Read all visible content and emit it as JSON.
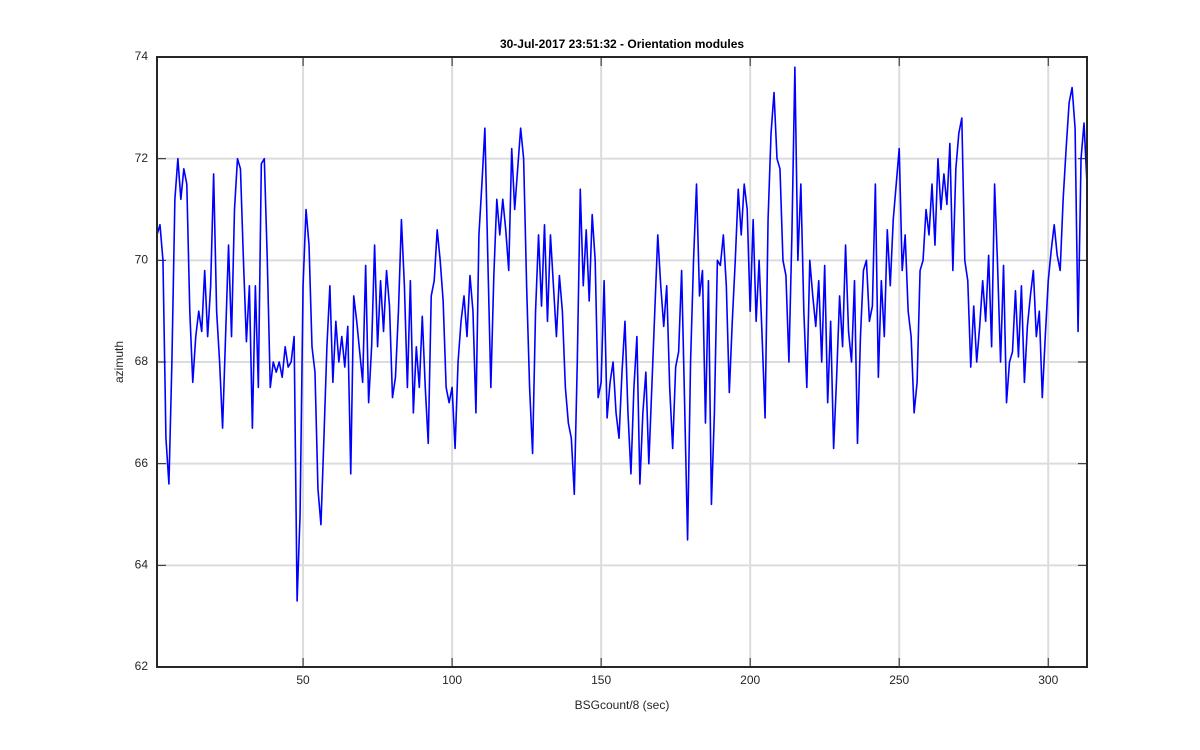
{
  "chart_data": {
    "type": "line",
    "title": "30-Jul-2017 23:51:32 - Orientation modules",
    "xlabel": "BSGcount/8 (sec)",
    "ylabel": "azimuth",
    "xlim": [
      1,
      313
    ],
    "xticks": [
      50,
      100,
      150,
      200,
      250,
      300
    ],
    "ylim": [
      62,
      74
    ],
    "yticks": [
      62,
      64,
      66,
      68,
      70,
      72,
      74
    ],
    "grid": true,
    "series": [
      {
        "color": "#0000ff",
        "x": [
          1,
          2,
          3,
          4,
          5,
          6,
          7,
          8,
          9,
          10,
          11,
          12,
          13,
          14,
          15,
          16,
          17,
          18,
          19,
          20,
          21,
          22,
          23,
          24,
          25,
          26,
          27,
          28,
          29,
          30,
          31,
          32,
          33,
          34,
          35,
          36,
          37,
          38,
          39,
          40,
          41,
          42,
          43,
          44,
          45,
          46,
          47,
          48,
          49,
          50,
          51,
          52,
          53,
          54,
          55,
          56,
          57,
          58,
          59,
          60,
          61,
          62,
          63,
          64,
          65,
          66,
          67,
          68,
          69,
          70,
          71,
          72,
          73,
          74,
          75,
          76,
          77,
          78,
          79,
          80,
          81,
          82,
          83,
          84,
          85,
          86,
          87,
          88,
          89,
          90,
          91,
          92,
          93,
          94,
          95,
          96,
          97,
          98,
          99,
          100,
          101,
          102,
          103,
          104,
          105,
          106,
          107,
          108,
          109,
          110,
          111,
          112,
          113,
          114,
          115,
          116,
          117,
          118,
          119,
          120,
          121,
          122,
          123,
          124,
          125,
          126,
          127,
          128,
          129,
          130,
          131,
          132,
          133,
          134,
          135,
          136,
          137,
          138,
          139,
          140,
          141,
          142,
          143,
          144,
          145,
          146,
          147,
          148,
          149,
          150,
          151,
          152,
          153,
          154,
          155,
          156,
          157,
          158,
          159,
          160,
          161,
          162,
          163,
          164,
          165,
          166,
          167,
          168,
          169,
          170,
          171,
          172,
          173,
          174,
          175,
          176,
          177,
          178,
          179,
          180,
          181,
          182,
          183,
          184,
          185,
          186,
          187,
          188,
          189,
          190,
          191,
          192,
          193,
          194,
          195,
          196,
          197,
          198,
          199,
          200,
          201,
          202,
          203,
          204,
          205,
          206,
          207,
          208,
          209,
          210,
          211,
          212,
          213,
          214,
          215,
          216,
          217,
          218,
          219,
          220,
          221,
          222,
          223,
          224,
          225,
          226,
          227,
          228,
          229,
          230,
          231,
          232,
          233,
          234,
          235,
          236,
          237,
          238,
          239,
          240,
          241,
          242,
          243,
          244,
          245,
          246,
          247,
          248,
          249,
          250,
          251,
          252,
          253,
          254,
          255,
          256,
          257,
          258,
          259,
          260,
          261,
          262,
          263,
          264,
          265,
          266,
          267,
          268,
          269,
          270,
          271,
          272,
          273,
          274,
          275,
          276,
          277,
          278,
          279,
          280,
          281,
          282,
          283,
          284,
          285,
          286,
          287,
          288,
          289,
          290,
          291,
          292,
          293,
          294,
          295,
          296,
          297,
          298,
          299,
          300,
          301,
          302,
          303,
          304,
          305,
          306,
          307,
          308,
          309,
          310,
          311,
          312,
          313
        ],
        "values": [
          70.5,
          70.7,
          70.0,
          66.5,
          65.6,
          68,
          71.2,
          72,
          71.2,
          71.8,
          71.5,
          69,
          67.6,
          68.5,
          69,
          68.6,
          69.8,
          68.5,
          69.5,
          71.7,
          69,
          68,
          66.7,
          68.5,
          70.3,
          68.5,
          71,
          72,
          71.8,
          70,
          68.4,
          69.5,
          66.7,
          69.5,
          67.5,
          71.9,
          72,
          70,
          67.5,
          68,
          67.8,
          68,
          67.7,
          68.3,
          67.9,
          68.0,
          68.5,
          63.3,
          65,
          69.5,
          71,
          70.3,
          68.3,
          67.8,
          65.5,
          64.8,
          66.5,
          68.3,
          69.5,
          67.6,
          68.8,
          68,
          68.5,
          67.9,
          68.7,
          65.8,
          69.3,
          68.8,
          68.2,
          67.6,
          69.9,
          67.2,
          68.3,
          70.3,
          68.3,
          69.6,
          68.6,
          69.8,
          69.1,
          67.3,
          67.7,
          69,
          70.8,
          69.5,
          67.5,
          69.6,
          67,
          68.3,
          67.5,
          68.9,
          67.5,
          66.4,
          69.3,
          69.6,
          70.6,
          70,
          69.2,
          67.5,
          67.2,
          67.5,
          66.3,
          68,
          68.8,
          69.3,
          68.5,
          69.7,
          69,
          67,
          70.5,
          71.5,
          72.6,
          70,
          67.5,
          69.7,
          71.2,
          70.5,
          71.2,
          70.6,
          69.8,
          72.2,
          71,
          71.8,
          72.6,
          72,
          69.5,
          67.5,
          66.2,
          69,
          70.5,
          69.1,
          70.7,
          68.8,
          70.5,
          69.5,
          68.5,
          69.7,
          69,
          67.5,
          66.8,
          66.5,
          65.4,
          68,
          71.4,
          69.5,
          70.6,
          69.2,
          70.9,
          70,
          67.3,
          67.6,
          69.6,
          66.9,
          67.6,
          68,
          67,
          66.5,
          67.8,
          68.8,
          67,
          65.8,
          67.5,
          68.5,
          65.6,
          67,
          67.8,
          66,
          67.5,
          69,
          70.5,
          69.5,
          68.7,
          69.5,
          67.5,
          66.3,
          67.9,
          68.2,
          69.8,
          67.2,
          64.5,
          68,
          70,
          71.5,
          69.3,
          69.8,
          66.8,
          69.6,
          65.2,
          67,
          70,
          69.9,
          70.5,
          69.5,
          67.4,
          68.8,
          70,
          71.4,
          70.5,
          71.5,
          71,
          69,
          70.8,
          68.8,
          70,
          68.5,
          66.9,
          70.8,
          72.5,
          73.3,
          72,
          71.8,
          70,
          69.7,
          68,
          70.5,
          73.8,
          70,
          71.5,
          69,
          67.5,
          70,
          69.3,
          68.7,
          69.6,
          68,
          69.9,
          67.2,
          68.8,
          66.3,
          67.7,
          69.3,
          68.3,
          70.3,
          68.6,
          68,
          69.6,
          66.4,
          68.5,
          69.8,
          70,
          68.8,
          69.1,
          71.5,
          67.7,
          69.6,
          68.5,
          70.6,
          69.5,
          70.8,
          71.5,
          72.2,
          69.8,
          70.5,
          69,
          68.5,
          67,
          67.6,
          69.8,
          70,
          71,
          70.5,
          71.5,
          70.3,
          72,
          71,
          71.7,
          71.1,
          72.3,
          69.8,
          71.8,
          72.5,
          72.8,
          70,
          69.6,
          67.9,
          69.1,
          68,
          68.7,
          69.6,
          68.8,
          70.1,
          68.3,
          71.5,
          69.9,
          68,
          69.9,
          67.2,
          68,
          68.2,
          69.4,
          68.1,
          69.5,
          67.6,
          68.7,
          69.3,
          69.8,
          68.5,
          69,
          67.3,
          68.5,
          69.6,
          70.2,
          70.7,
          70.1,
          69.8,
          71.2,
          72.2,
          73.1,
          73.4,
          72.6,
          68.6,
          72,
          72.7,
          71.5
        ]
      }
    ]
  }
}
